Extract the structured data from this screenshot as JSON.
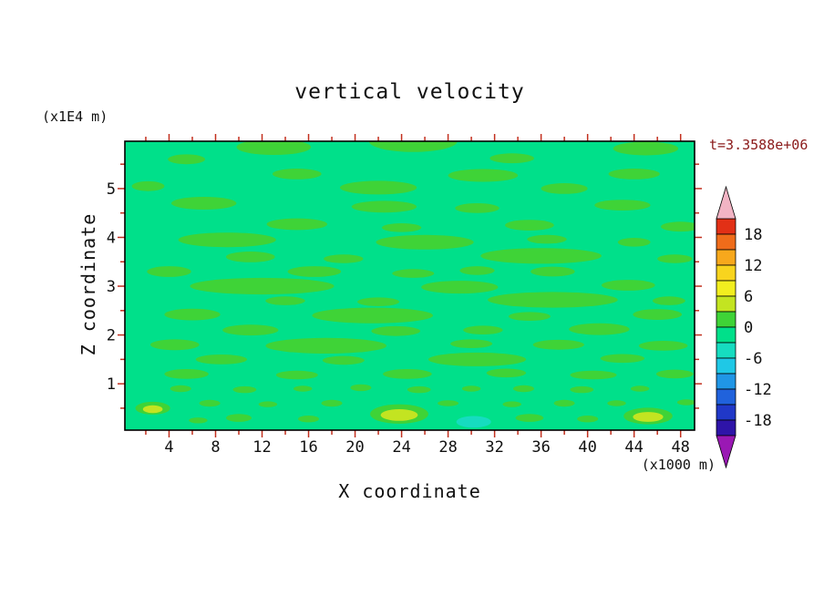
{
  "title": "vertical velocity",
  "annotations": {
    "z_units": "(x1E4 m)",
    "x_units": "(x1000 m)",
    "time_label": "t=3.3588e+06"
  },
  "axes": {
    "x_label": "X coordinate",
    "z_label": "Z coordinate",
    "x_ticks": [
      4,
      8,
      12,
      16,
      20,
      24,
      28,
      32,
      36,
      40,
      44,
      48
    ],
    "z_ticks": [
      1,
      2,
      3,
      4,
      5
    ]
  },
  "colors": {
    "frame": "#000000",
    "tick": "#c22f1e",
    "text": "#111111",
    "time_label": "#8b1a1a",
    "page_background": "#ffffff"
  },
  "colorbar": {
    "labels": [
      "18",
      "12",
      "6",
      "0",
      "-6",
      "-12",
      "-18"
    ],
    "segments": [
      "#e23016",
      "#ef6c1a",
      "#f7a81c",
      "#f8d41e",
      "#f2ee1f",
      "#c3e421",
      "#3fd337",
      "#00e08a",
      "#16dcc0",
      "#1fc8e6",
      "#2096e6",
      "#2062dc",
      "#2038c8",
      "#2e14a8"
    ],
    "top_arrow_color": "#f2b4c4",
    "bottom_arrow_color": "#9a18b4"
  },
  "chart_data": {
    "type": "heatmap",
    "title": "vertical velocity",
    "xlabel": "X coordinate (x1000 m)",
    "ylabel": "Z coordinate (x1E4 m)",
    "time_annotation": "t=3.3588e+06",
    "xlim": [
      0.2,
      49.2
    ],
    "zlim": [
      0.05,
      5.97
    ],
    "x_tick_labels": [
      4,
      8,
      12,
      16,
      20,
      24,
      28,
      32,
      36,
      40,
      44,
      48
    ],
    "z_tick_labels": [
      1,
      2,
      3,
      4,
      5
    ],
    "contour_interval": 3,
    "colorbar_labels": [
      18,
      12,
      6,
      0,
      -6,
      -12,
      -18
    ],
    "legend_position": "right",
    "grid": false,
    "field_description": "Filled-contour vertical velocity field: background band -3..0 (spring green) with many elongated horizontal streaks in the 0..3 band (green), a few 3..6 patches (yellow-green) near the bottom boundary, and a small -6..-3 patch (turquoise) near the bottom center",
    "field_colors": {
      "background": "#00e08a",
      "g": "#3fd337",
      "y": "#c3e421",
      "c": "#16dcc0"
    },
    "blob_format": "[x, z, rx, rz, level]; data units; level g = 0..3, y = 3..6, c = -6..-3",
    "blobs": [
      [
        13,
        5.85,
        3.2,
        0.16,
        "g"
      ],
      [
        25,
        5.97,
        3.8,
        0.22,
        "g"
      ],
      [
        45,
        5.82,
        2.8,
        0.14,
        "g"
      ],
      [
        5.5,
        5.6,
        1.6,
        0.1,
        "g"
      ],
      [
        33.5,
        5.62,
        1.9,
        0.1,
        "g"
      ],
      [
        15,
        5.3,
        2.1,
        0.11,
        "g"
      ],
      [
        31,
        5.27,
        3.0,
        0.13,
        "g"
      ],
      [
        44,
        5.3,
        2.2,
        0.11,
        "g"
      ],
      [
        2.2,
        5.05,
        1.4,
        0.1,
        "g"
      ],
      [
        22,
        5.02,
        3.3,
        0.14,
        "g"
      ],
      [
        38,
        5.0,
        2.0,
        0.11,
        "g"
      ],
      [
        7,
        4.7,
        2.8,
        0.13,
        "g"
      ],
      [
        22.5,
        4.63,
        2.8,
        0.12,
        "g"
      ],
      [
        30.5,
        4.6,
        1.9,
        0.1,
        "g"
      ],
      [
        43,
        4.66,
        2.4,
        0.11,
        "g"
      ],
      [
        15,
        4.27,
        2.6,
        0.12,
        "g"
      ],
      [
        24,
        4.2,
        1.7,
        0.09,
        "g"
      ],
      [
        35,
        4.25,
        2.1,
        0.11,
        "g"
      ],
      [
        48,
        4.22,
        1.7,
        0.1,
        "g"
      ],
      [
        9,
        3.95,
        4.2,
        0.15,
        "g"
      ],
      [
        26,
        3.9,
        4.2,
        0.15,
        "g"
      ],
      [
        36.5,
        3.96,
        1.7,
        0.09,
        "g"
      ],
      [
        44,
        3.9,
        1.4,
        0.09,
        "g"
      ],
      [
        11,
        3.6,
        2.1,
        0.11,
        "g"
      ],
      [
        19,
        3.56,
        1.7,
        0.09,
        "g"
      ],
      [
        36,
        3.62,
        5.2,
        0.16,
        "g"
      ],
      [
        47.5,
        3.56,
        1.5,
        0.09,
        "g"
      ],
      [
        4,
        3.3,
        1.9,
        0.11,
        "g"
      ],
      [
        16.5,
        3.3,
        2.3,
        0.11,
        "g"
      ],
      [
        25,
        3.26,
        1.8,
        0.09,
        "g"
      ],
      [
        30.5,
        3.32,
        1.5,
        0.09,
        "g"
      ],
      [
        37,
        3.3,
        1.9,
        0.1,
        "g"
      ],
      [
        12,
        3.0,
        6.2,
        0.17,
        "g"
      ],
      [
        29,
        2.98,
        3.3,
        0.13,
        "g"
      ],
      [
        43.5,
        3.02,
        2.3,
        0.11,
        "g"
      ],
      [
        14,
        2.7,
        1.7,
        0.09,
        "g"
      ],
      [
        22,
        2.68,
        1.8,
        0.09,
        "g"
      ],
      [
        37,
        2.72,
        5.6,
        0.16,
        "g"
      ],
      [
        47,
        2.7,
        1.4,
        0.09,
        "g"
      ],
      [
        6,
        2.42,
        2.4,
        0.12,
        "g"
      ],
      [
        21.5,
        2.4,
        5.2,
        0.16,
        "g"
      ],
      [
        35,
        2.38,
        1.8,
        0.09,
        "g"
      ],
      [
        46,
        2.42,
        2.1,
        0.11,
        "g"
      ],
      [
        11,
        2.1,
        2.4,
        0.11,
        "g"
      ],
      [
        23.5,
        2.08,
        2.1,
        0.1,
        "g"
      ],
      [
        31,
        2.1,
        1.7,
        0.09,
        "g"
      ],
      [
        41,
        2.12,
        2.6,
        0.12,
        "g"
      ],
      [
        4.5,
        1.8,
        2.1,
        0.11,
        "g"
      ],
      [
        17.5,
        1.78,
        5.2,
        0.16,
        "g"
      ],
      [
        30,
        1.82,
        1.8,
        0.09,
        "g"
      ],
      [
        37.5,
        1.8,
        2.2,
        0.1,
        "g"
      ],
      [
        46.5,
        1.78,
        2.1,
        0.1,
        "g"
      ],
      [
        8.5,
        1.5,
        2.2,
        0.1,
        "g"
      ],
      [
        19,
        1.48,
        1.8,
        0.09,
        "g"
      ],
      [
        30.5,
        1.5,
        4.2,
        0.14,
        "g"
      ],
      [
        43,
        1.52,
        1.9,
        0.09,
        "g"
      ],
      [
        5.5,
        1.2,
        1.9,
        0.1,
        "g"
      ],
      [
        15,
        1.18,
        1.8,
        0.09,
        "g"
      ],
      [
        24.5,
        1.2,
        2.1,
        0.1,
        "g"
      ],
      [
        33,
        1.22,
        1.7,
        0.09,
        "g"
      ],
      [
        40.5,
        1.18,
        2.0,
        0.09,
        "g"
      ],
      [
        47.5,
        1.2,
        1.6,
        0.09,
        "g"
      ],
      [
        5,
        0.9,
        0.9,
        0.07,
        "g"
      ],
      [
        10.5,
        0.88,
        1.0,
        0.07,
        "g"
      ],
      [
        15.5,
        0.9,
        0.8,
        0.06,
        "g"
      ],
      [
        20.5,
        0.92,
        0.9,
        0.07,
        "g"
      ],
      [
        25.5,
        0.88,
        1.0,
        0.07,
        "g"
      ],
      [
        30,
        0.9,
        0.8,
        0.06,
        "g"
      ],
      [
        34.5,
        0.9,
        0.9,
        0.07,
        "g"
      ],
      [
        39.5,
        0.88,
        1.0,
        0.07,
        "g"
      ],
      [
        44.5,
        0.9,
        0.8,
        0.06,
        "g"
      ],
      [
        7.5,
        0.6,
        0.9,
        0.07,
        "g"
      ],
      [
        12.5,
        0.58,
        0.8,
        0.06,
        "g"
      ],
      [
        18,
        0.6,
        0.9,
        0.07,
        "g"
      ],
      [
        28,
        0.6,
        0.9,
        0.06,
        "g"
      ],
      [
        33.5,
        0.58,
        0.8,
        0.06,
        "g"
      ],
      [
        38,
        0.6,
        0.9,
        0.07,
        "g"
      ],
      [
        42.5,
        0.6,
        0.8,
        0.06,
        "g"
      ],
      [
        48.5,
        0.62,
        0.8,
        0.06,
        "g"
      ],
      [
        10,
        0.3,
        1.1,
        0.08,
        "g"
      ],
      [
        16,
        0.28,
        0.9,
        0.07,
        "g"
      ],
      [
        35,
        0.3,
        1.2,
        0.08,
        "g"
      ],
      [
        40,
        0.28,
        0.9,
        0.07,
        "g"
      ],
      [
        6.5,
        0.25,
        0.8,
        0.06,
        "g"
      ],
      [
        23.8,
        0.38,
        2.5,
        0.2,
        "g"
      ],
      [
        45.2,
        0.34,
        2.1,
        0.17,
        "g"
      ],
      [
        2.6,
        0.5,
        1.5,
        0.13,
        "g"
      ],
      [
        23.8,
        0.36,
        1.6,
        0.12,
        "y"
      ],
      [
        45.2,
        0.32,
        1.3,
        0.1,
        "y"
      ],
      [
        2.6,
        0.48,
        0.85,
        0.08,
        "y"
      ],
      [
        30.2,
        0.22,
        1.5,
        0.12,
        "c"
      ]
    ]
  }
}
